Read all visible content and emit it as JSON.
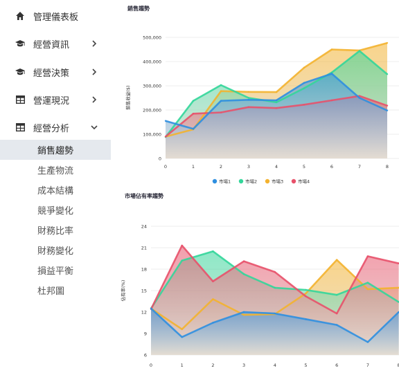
{
  "sidebar": {
    "items": [
      {
        "label": "管理儀表板",
        "icon": "home-icon",
        "arrow": ""
      },
      {
        "label": "經營資訊",
        "icon": "graduation-cap-icon",
        "arrow": "right"
      },
      {
        "label": "經營決策",
        "icon": "graduation-cap-icon",
        "arrow": "right"
      },
      {
        "label": "營運現況",
        "icon": "table-icon",
        "arrow": "right"
      },
      {
        "label": "經營分析",
        "icon": "table-icon",
        "arrow": "down"
      }
    ],
    "subitems": [
      {
        "label": "銷售趨勢",
        "active": true
      },
      {
        "label": "生產物流",
        "active": false
      },
      {
        "label": "成本結構",
        "active": false
      },
      {
        "label": "競爭變化",
        "active": false
      },
      {
        "label": "財務比率",
        "active": false
      },
      {
        "label": "財務變化",
        "active": false
      },
      {
        "label": "損益平衡",
        "active": false
      },
      {
        "label": "杜邦圖",
        "active": false
      }
    ]
  },
  "chart_data": [
    {
      "type": "area",
      "title": "銷售趨勢",
      "ylabel": "銷售收益($)",
      "xlabel": "",
      "x": [
        0,
        1,
        2,
        3,
        4,
        5,
        6,
        7,
        8
      ],
      "ylim": [
        0,
        500000
      ],
      "yticks": [
        0,
        100000,
        200000,
        300000,
        400000,
        500000
      ],
      "ytick_labels": [
        "0",
        "100,000",
        "200,000",
        "300,000",
        "400,000",
        "500,000"
      ],
      "series": [
        {
          "name": "市場1",
          "color": "#2f8fe0",
          "values": [
            155000,
            122000,
            238000,
            242000,
            240000,
            312000,
            350000,
            250000,
            198000
          ]
        },
        {
          "name": "市場2",
          "color": "#33d69a",
          "values": [
            88000,
            238000,
            303000,
            250000,
            232000,
            290000,
            355000,
            444000,
            348000
          ]
        },
        {
          "name": "市場3",
          "color": "#f3b22f",
          "values": [
            90000,
            120000,
            278000,
            275000,
            274000,
            375000,
            450000,
            446000,
            477000
          ]
        },
        {
          "name": "市場4",
          "color": "#e8516a",
          "values": [
            90000,
            185000,
            190000,
            212000,
            208000,
            222000,
            240000,
            258000,
            218000
          ]
        }
      ],
      "legend": "bottom"
    },
    {
      "type": "area",
      "title": "市場佔有率趨勢",
      "ylabel": "佔有率(%)",
      "xlabel": "",
      "x": [
        0,
        1,
        2,
        3,
        4,
        5,
        6,
        7,
        8
      ],
      "ylim": [
        6,
        24
      ],
      "yticks": [
        6,
        9,
        12,
        15,
        18,
        21,
        24
      ],
      "ytick_labels": [
        "6",
        "9",
        "12",
        "15",
        "18",
        "21",
        "24"
      ],
      "series": [
        {
          "name": "市場1",
          "color": "#2f8fe0",
          "values": [
            12.5,
            8.5,
            10.5,
            12.0,
            11.8,
            11.0,
            10.2,
            7.8,
            12.0
          ]
        },
        {
          "name": "市場2",
          "color": "#33d69a",
          "values": [
            12.5,
            19.2,
            20.5,
            17.3,
            15.4,
            15.1,
            14.4,
            16.1,
            13.4
          ]
        },
        {
          "name": "市場3",
          "color": "#f3b22f",
          "values": [
            12.5,
            9.6,
            13.8,
            11.6,
            11.7,
            14.6,
            19.3,
            15.2,
            15.4
          ]
        },
        {
          "name": "市場4",
          "color": "#e8516a",
          "values": [
            12.4,
            21.3,
            16.3,
            19.1,
            17.6,
            14.2,
            11.8,
            19.8,
            18.8
          ]
        }
      ]
    }
  ]
}
